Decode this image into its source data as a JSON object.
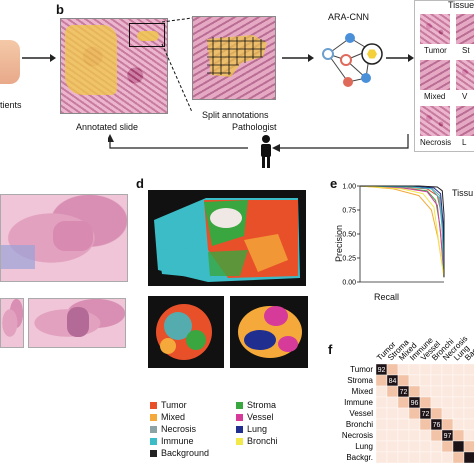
{
  "panels": {
    "b": "b",
    "d": "d",
    "e": "e",
    "f": "f"
  },
  "top": {
    "patients_label": "tients",
    "annotated_slide": "Annotated slide",
    "split_annotations": "Split annotations",
    "cnn_label": "ARA-CNN",
    "pathologist": "Pathologist",
    "tissue_header": "Tissue",
    "tiles": [
      "Tumor",
      "St",
      "Mixed",
      "V",
      "Necrosis",
      "L"
    ]
  },
  "legend": {
    "items": [
      {
        "label": "Tumor",
        "color": "#e8502a"
      },
      {
        "label": "Stroma",
        "color": "#3aa640"
      },
      {
        "label": "Mixed",
        "color": "#f4a93a"
      },
      {
        "label": "Vessel",
        "color": "#d63b9a"
      },
      {
        "label": "Necrosis",
        "color": "#8ca3a6"
      },
      {
        "label": "Lung",
        "color": "#1f2e8f"
      },
      {
        "label": "Immune",
        "color": "#3bbcc7"
      },
      {
        "label": "Bronchi",
        "color": "#f2e84a"
      },
      {
        "label": "Background",
        "color": "#222222"
      }
    ]
  },
  "chart_e": {
    "xlabel": "Recall",
    "ylabel": "Precision",
    "yticks": [
      "1.00",
      "0.75",
      "0.50",
      "0.25",
      "0.00"
    ],
    "legend_header": "Tissu",
    "colors": [
      "#e8502a",
      "#3aa640",
      "#f4a93a",
      "#d63b9a",
      "#8ca3a6",
      "#1f2e8f",
      "#3bbcc7",
      "#f2e84a",
      "#222222"
    ]
  },
  "matrix_f": {
    "row_labels": [
      "Tumor",
      "Stroma",
      "Mixed",
      "Immune",
      "Vessel",
      "Bronchi",
      "Necrosis",
      "Lung",
      "Backgr."
    ],
    "col_labels": [
      "Tumor",
      "Stroma",
      "Mixed",
      "Immune",
      "Vessel",
      "Bronchi",
      "Necrosis",
      "Lung",
      "Backgr."
    ],
    "diagonal": [
      "92",
      "84",
      "72",
      "96",
      "72",
      "76",
      "97",
      "",
      ""
    ]
  },
  "chart_data": {
    "type": "line",
    "xlabel": "Recall",
    "ylabel": "Precision",
    "xlim": [
      0,
      1
    ],
    "ylim": [
      0,
      1
    ],
    "yticks": [
      0.0,
      0.25,
      0.5,
      0.75,
      1.0
    ],
    "series": [
      {
        "color": "#e8502a",
        "x": [
          0,
          0.5,
          0.8,
          0.92,
          0.97,
          1.0
        ],
        "y": [
          1.0,
          0.99,
          0.97,
          0.9,
          0.7,
          0.1
        ]
      },
      {
        "color": "#3aa640",
        "x": [
          0,
          0.5,
          0.8,
          0.9,
          0.95,
          1.0
        ],
        "y": [
          1.0,
          0.98,
          0.95,
          0.85,
          0.6,
          0.1
        ]
      },
      {
        "color": "#f4a93a",
        "x": [
          0,
          0.4,
          0.7,
          0.85,
          0.93,
          1.0
        ],
        "y": [
          1.0,
          0.97,
          0.9,
          0.75,
          0.45,
          0.05
        ]
      },
      {
        "color": "#d63b9a",
        "x": [
          0,
          0.5,
          0.8,
          0.92,
          0.96,
          1.0
        ],
        "y": [
          1.0,
          0.98,
          0.94,
          0.8,
          0.5,
          0.05
        ]
      },
      {
        "color": "#8ca3a6",
        "x": [
          0,
          0.6,
          0.85,
          0.95,
          0.99,
          1.0
        ],
        "y": [
          1.0,
          0.99,
          0.98,
          0.9,
          0.5,
          0.05
        ]
      },
      {
        "color": "#1f2e8f",
        "x": [
          0,
          0.6,
          0.88,
          0.96,
          0.99,
          1.0
        ],
        "y": [
          1.0,
          1.0,
          0.98,
          0.92,
          0.6,
          0.05
        ]
      },
      {
        "color": "#3bbcc7",
        "x": [
          0,
          0.6,
          0.85,
          0.94,
          0.98,
          1.0
        ],
        "y": [
          1.0,
          0.99,
          0.97,
          0.88,
          0.55,
          0.05
        ]
      },
      {
        "color": "#f2e84a",
        "x": [
          0,
          0.5,
          0.75,
          0.88,
          0.94,
          1.0
        ],
        "y": [
          1.0,
          0.97,
          0.92,
          0.78,
          0.4,
          0.05
        ]
      },
      {
        "color": "#222222",
        "x": [
          0,
          0.7,
          0.92,
          0.98,
          1.0,
          1.0
        ],
        "y": [
          1.0,
          1.0,
          0.99,
          0.95,
          0.7,
          0.05
        ]
      }
    ]
  }
}
